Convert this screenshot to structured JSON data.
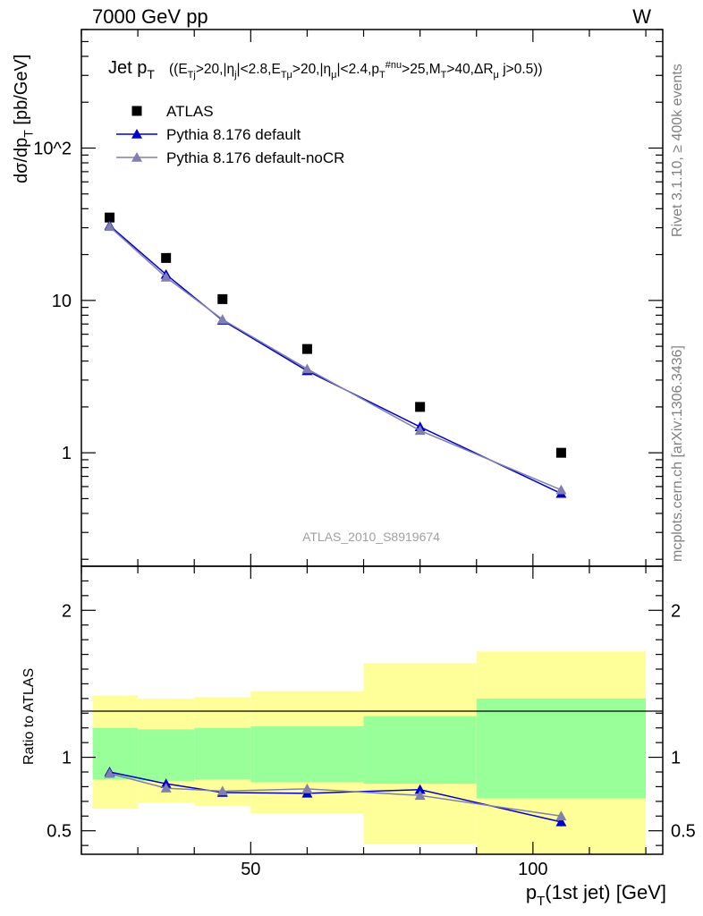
{
  "header": {
    "left": "7000 GeV pp",
    "right": "W"
  },
  "side": {
    "top": "Rivet 3.1.10, ≥ 400k events",
    "bottom": "mcplots.cern.ch [arXiv:1306.3436]"
  },
  "main": {
    "title_main": "Jet p",
    "title_main_sub": "T",
    "title_cuts": "((E_Tj>20,|η_j|<2.8,E_Tμ>20,|η_μ|<2.4,p_T^#nu>25,M_T>40,ΔR_μ j>0.5))",
    "ylabel": "dσ/dp_T [pb/GeV]",
    "analysis_label": "ATLAS_2010_S8919674"
  },
  "ratio": {
    "ylabel": "Ratio to ATLAS"
  },
  "xlabel": "p_T(1st jet) [GeV]",
  "colors": {
    "data": "#000000",
    "default": "#0000cc",
    "nocr": "#8080b0",
    "band_inner": "#99ff99",
    "band_outer": "#ffff99"
  },
  "chart_data": [
    {
      "type": "scatter",
      "panel": "main",
      "xscale": "linear",
      "yscale": "log",
      "xlim": [
        20,
        123
      ],
      "ylim": [
        0.18,
        600
      ],
      "x_ticks": [
        50,
        100
      ],
      "y_ticks": [
        {
          "value": 1,
          "label": "1"
        },
        {
          "value": 10,
          "label": "10"
        },
        {
          "value": 100,
          "label": "10^2"
        }
      ],
      "legend_position": "top-left",
      "series": [
        {
          "name": "ATLAS",
          "style": "square",
          "x": [
            25,
            35,
            45,
            60,
            80,
            105
          ],
          "y": [
            35,
            19,
            10.2,
            4.8,
            2.0,
            1.0
          ]
        },
        {
          "name": "Pythia 8.176 default",
          "style": "line-triangle",
          "x": [
            25,
            35,
            45,
            60,
            80,
            105
          ],
          "y": [
            31,
            14.8,
            7.4,
            3.45,
            1.48,
            0.54
          ]
        },
        {
          "name": "Pythia 8.176 default-noCR",
          "style": "line-triangle",
          "x": [
            25,
            35,
            45,
            60,
            80,
            105
          ],
          "y": [
            30.5,
            14.2,
            7.5,
            3.55,
            1.4,
            0.57
          ]
        }
      ]
    },
    {
      "type": "line",
      "panel": "ratio",
      "xscale": "linear",
      "yscale": "linear",
      "xlim": [
        20,
        123
      ],
      "ylim": [
        0.34,
        2.3
      ],
      "x_ticks": [
        50,
        100
      ],
      "y_ticks": [
        0.5,
        1,
        2
      ],
      "bins": [
        [
          22,
          30
        ],
        [
          30,
          40
        ],
        [
          40,
          50
        ],
        [
          50,
          70
        ],
        [
          70,
          90
        ],
        [
          90,
          120
        ]
      ],
      "band_inner": [
        [
          0.85,
          1.2
        ],
        [
          0.84,
          1.19
        ],
        [
          0.85,
          1.2
        ],
        [
          0.83,
          1.21
        ],
        [
          0.82,
          1.28
        ],
        [
          0.72,
          1.4
        ]
      ],
      "band_outer": [
        [
          0.65,
          1.42
        ],
        [
          0.69,
          1.4
        ],
        [
          0.67,
          1.41
        ],
        [
          0.62,
          1.45
        ],
        [
          0.41,
          1.64
        ],
        [
          0.34,
          1.72
        ]
      ],
      "series": [
        {
          "name": "Pythia 8.176 default",
          "x": [
            25,
            35,
            45,
            60,
            80,
            105
          ],
          "y": [
            0.9,
            0.82,
            0.76,
            0.755,
            0.78,
            0.56
          ],
          "err": [
            0.01,
            0.01,
            0.01,
            0.012,
            0.02,
            0.03
          ]
        },
        {
          "name": "Pythia 8.176 default-noCR",
          "x": [
            25,
            35,
            45,
            60,
            80,
            105
          ],
          "y": [
            0.89,
            0.79,
            0.77,
            0.785,
            0.74,
            0.6
          ],
          "err": [
            0.01,
            0.01,
            0.01,
            0.012,
            0.02,
            0.03
          ]
        }
      ]
    }
  ]
}
